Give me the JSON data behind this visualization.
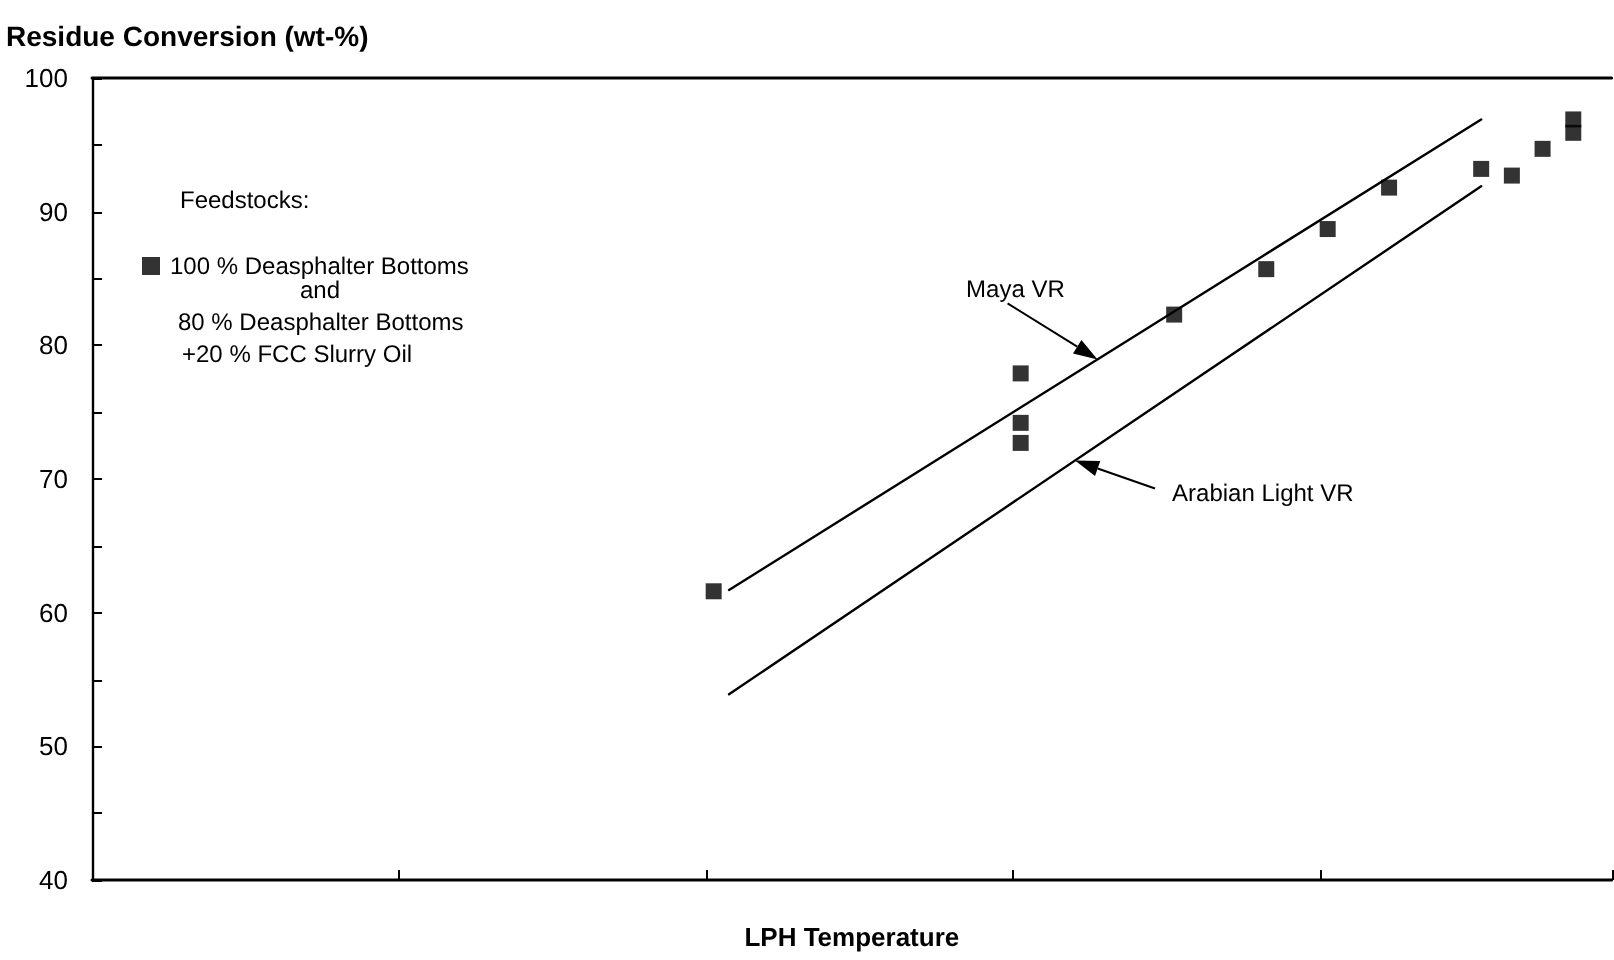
{
  "chart_data": {
    "type": "scatter",
    "ylabel": "Residue Conversion (wt-%)",
    "xlabel": "LPH Temperature",
    "legend_title": "Feedstocks:",
    "annotations": [
      "and",
      "80 % Deasphalter Bottoms",
      "+20 % FCC Slurry Oil"
    ],
    "categories": [
      null,
      null,
      null,
      null,
      null,
      null,
      null,
      null,
      null,
      null,
      null,
      null,
      null,
      null,
      null,
      null,
      null,
      null,
      null,
      null,
      null,
      null,
      null,
      null,
      null,
      null,
      null,
      null,
      null,
      null,
      null,
      null,
      null,
      null,
      null,
      null,
      null,
      null,
      null,
      null,
      null,
      null,
      null,
      null,
      null,
      null,
      null,
      null,
      null,
      null,
      null,
      null,
      null,
      null,
      null,
      null,
      null,
      null,
      null,
      null,
      null,
      null,
      null,
      null,
      null,
      null,
      null,
      null,
      null,
      null,
      null,
      null,
      null,
      null,
      null,
      null,
      null,
      null,
      null,
      null,
      null,
      null,
      null,
      null,
      null,
      null,
      null,
      null,
      null,
      null,
      null,
      null,
      null,
      null,
      null,
      null,
      null,
      null,
      null
    ],
    "series": [
      {
        "name": "100 % Deasphalter Bottoms",
        "color": "#000000",
        "marker": "square",
        "values": [
          null,
          null,
          null,
          null,
          null,
          null,
          null,
          null,
          null,
          null,
          null,
          null,
          null,
          null,
          null,
          null,
          null,
          null,
          null,
          null,
          null,
          null,
          null,
          null,
          null,
          null,
          null,
          null,
          null,
          null,
          null,
          null,
          null,
          null,
          null,
          null,
          null,
          null,
          null,
          null,
          61.6,
          null,
          null,
          null,
          null,
          null,
          null,
          null,
          null,
          null,
          null,
          null,
          null,
          null,
          null,
          null,
          null,
          null,
          null,
          null,
          77.9,
          null,
          null,
          null,
          null,
          null,
          null,
          null,
          null,
          null,
          82.3,
          null,
          null,
          null,
          null,
          null,
          85.7,
          null,
          null,
          null,
          88.7,
          null,
          null,
          null,
          91.8,
          null,
          null,
          null,
          null,
          null,
          93.2,
          null,
          92.7,
          null,
          94.7,
          null,
          96.9,
          null,
          null
        ]
      },
      {
        "color": "#000000",
        "marker": "square",
        "values": [
          null,
          null,
          null,
          null,
          null,
          null,
          null,
          null,
          null,
          null,
          null,
          null,
          null,
          null,
          null,
          null,
          null,
          null,
          null,
          null,
          null,
          null,
          null,
          null,
          null,
          null,
          null,
          null,
          null,
          null,
          null,
          null,
          null,
          null,
          null,
          null,
          null,
          null,
          null,
          null,
          null,
          null,
          null,
          null,
          null,
          null,
          null,
          null,
          null,
          null,
          null,
          null,
          null,
          null,
          null,
          null,
          null,
          null,
          null,
          null,
          74.2,
          null,
          null,
          null,
          null,
          null,
          null,
          null,
          null,
          null,
          null,
          null,
          null,
          null,
          null,
          null,
          null,
          null,
          null,
          null,
          null,
          null,
          null,
          null,
          null,
          null,
          null,
          null,
          null,
          null,
          null,
          null,
          null,
          null,
          null,
          null,
          95.9,
          null,
          null
        ]
      },
      {
        "color": "#000000",
        "marker": "square",
        "values": [
          null,
          null,
          null,
          null,
          null,
          null,
          null,
          null,
          null,
          null,
          null,
          null,
          null,
          null,
          null,
          null,
          null,
          null,
          null,
          null,
          null,
          null,
          null,
          null,
          null,
          null,
          null,
          null,
          null,
          null,
          null,
          null,
          null,
          null,
          null,
          null,
          null,
          null,
          null,
          null,
          null,
          null,
          null,
          null,
          null,
          null,
          null,
          null,
          null,
          null,
          null,
          null,
          null,
          null,
          null,
          null,
          null,
          null,
          null,
          null,
          72.7,
          null,
          null,
          null,
          null,
          null,
          null,
          null,
          null,
          null,
          null,
          null,
          null,
          null,
          null,
          null,
          null,
          null,
          null,
          null,
          null,
          null,
          null,
          null,
          null,
          null,
          null,
          null,
          null,
          null,
          null,
          null,
          null,
          null,
          null,
          null,
          null,
          null,
          null
        ]
      },
      {
        "name": "Maya VR",
        "type": "line",
        "color": "#000000",
        "values": [
          null,
          null,
          null,
          null,
          null,
          null,
          null,
          null,
          null,
          null,
          null,
          null,
          null,
          null,
          null,
          null,
          null,
          null,
          null,
          null,
          null,
          null,
          null,
          null,
          null,
          null,
          null,
          null,
          null,
          null,
          null,
          null,
          null,
          null,
          null,
          null,
          null,
          null,
          null,
          null,
          null,
          61.7,
          null,
          null,
          null,
          null,
          null,
          null,
          null,
          null,
          null,
          null,
          null,
          null,
          null,
          null,
          null,
          null,
          null,
          null,
          null,
          null,
          null,
          null,
          null,
          null,
          null,
          null,
          null,
          null,
          null,
          null,
          null,
          null,
          null,
          null,
          null,
          null,
          null,
          null,
          null,
          null,
          null,
          null,
          null,
          null,
          null,
          null,
          null,
          null,
          96.9,
          null,
          null,
          null,
          null,
          null,
          null,
          null,
          null
        ]
      },
      {
        "name": "Arabian Light VR",
        "type": "line",
        "color": "#000000",
        "values": [
          null,
          null,
          null,
          null,
          null,
          null,
          null,
          null,
          null,
          null,
          null,
          null,
          null,
          null,
          null,
          null,
          null,
          null,
          null,
          null,
          null,
          null,
          null,
          null,
          null,
          null,
          null,
          null,
          null,
          null,
          null,
          null,
          null,
          null,
          null,
          null,
          null,
          null,
          null,
          null,
          null,
          53.9,
          null,
          null,
          null,
          null,
          null,
          null,
          null,
          null,
          null,
          null,
          null,
          null,
          null,
          null,
          null,
          null,
          null,
          null,
          null,
          null,
          null,
          null,
          null,
          null,
          null,
          null,
          null,
          null,
          null,
          null,
          null,
          null,
          null,
          null,
          null,
          null,
          null,
          null,
          null,
          null,
          null,
          null,
          null,
          null,
          null,
          null,
          null,
          null,
          91.9,
          null,
          null,
          null,
          null,
          null,
          null,
          null,
          null
        ]
      }
    ],
    "ylim": [
      40,
      100
    ],
    "yticks": [
      40,
      {
        "value": 45,
        "label": null
      },
      50,
      {
        "value": 55,
        "label": null
      },
      60,
      {
        "value": 65,
        "label": null
      },
      70,
      {
        "value": 75,
        "label": null
      },
      80,
      {
        "value": 85,
        "label": null
      },
      90,
      {
        "value": 95,
        "label": null
      },
      100
    ],
    "grid": false,
    "legend": "top left"
  }
}
